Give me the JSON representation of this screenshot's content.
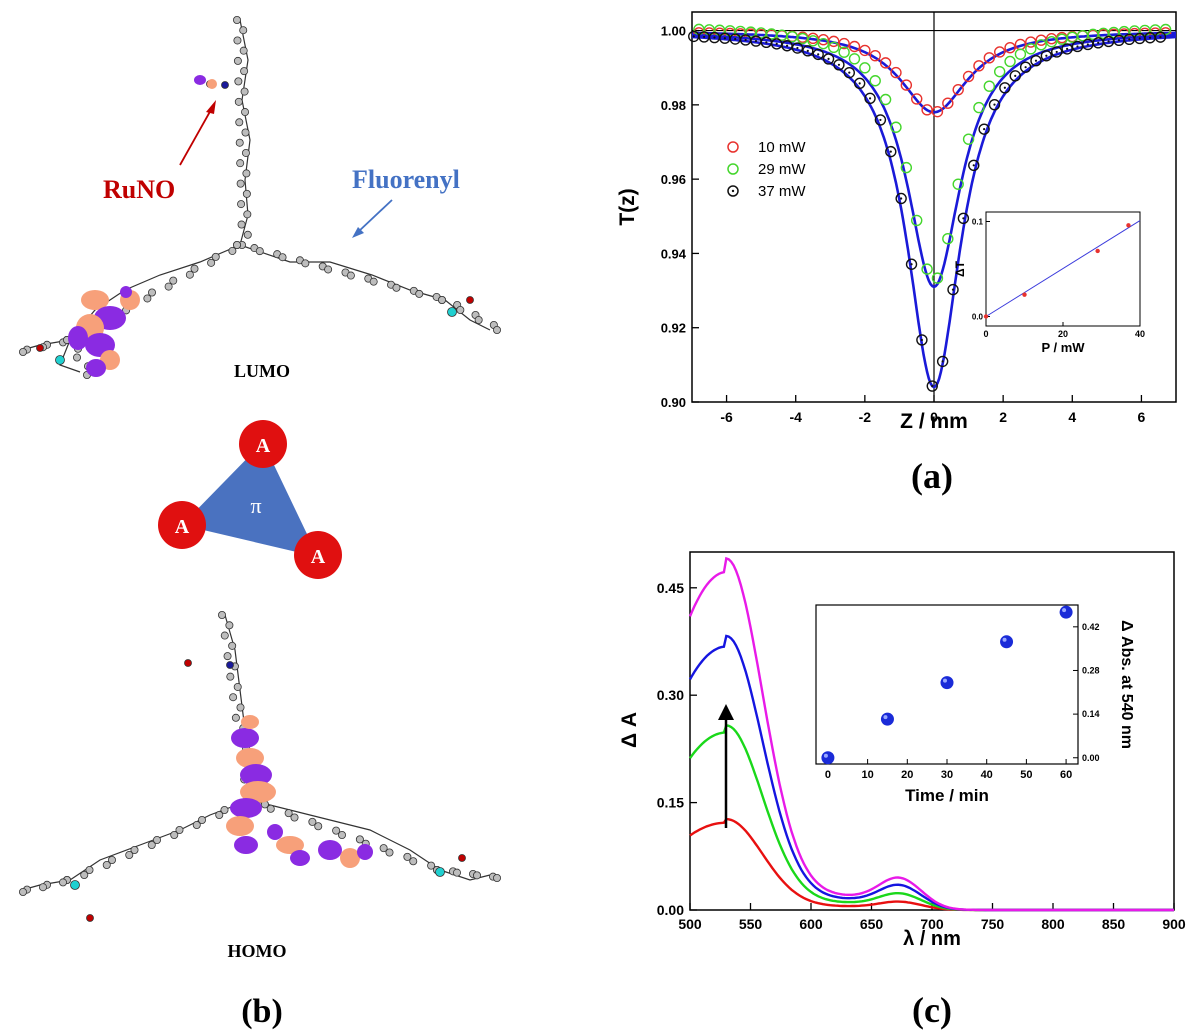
{
  "panel_labels": {
    "a": "(a)",
    "b": "(b)",
    "c": "(c)"
  },
  "molecule": {
    "lumo_label": "LUMO",
    "homo_label": "HOMO",
    "runo_label": "RuNO",
    "fluorenyl_label": "Fluorenyl",
    "triangle_center": "π",
    "triangle_vertex": "A",
    "colors": {
      "orbital_purple": "#8a2be2",
      "orbital_orange": "#f7a07a",
      "runo_red": "#c00000",
      "fluorenyl_blue": "#4472c4",
      "triangle": "#4a72c0",
      "vertex": "#e01010"
    }
  },
  "chart_data": [
    {
      "id": "a",
      "type": "scatter",
      "xlabel": "Z / mm",
      "ylabel": "T(z)",
      "xlim": [
        -7,
        7
      ],
      "ylim": [
        0.9,
        1.005
      ],
      "xticks": [
        -6,
        -4,
        -2,
        0,
        2,
        4,
        6
      ],
      "yticks": [
        0.9,
        0.92,
        0.94,
        0.96,
        0.98,
        1.0
      ],
      "ytick_labels": [
        "0.90",
        "0.92",
        "0.94",
        "0.96",
        "0.98",
        "1.00"
      ],
      "legend_position": "left",
      "series": [
        {
          "name": "10 mW",
          "color": "#e8322e",
          "min_T": 0.978,
          "width_mm": 1.2
        },
        {
          "name": "29 mW",
          "color": "#44d62c",
          "min_T": 0.931,
          "width_mm": 0.95
        },
        {
          "name": "37 mW",
          "color": "#111111",
          "min_T": 0.904,
          "width_mm": 0.95
        }
      ],
      "fit_color": "#1a1ad8",
      "inset": {
        "type": "scatter",
        "xlabel": "P / mW",
        "ylabel": "ΔT",
        "xlim": [
          0,
          40
        ],
        "ylim": [
          -0.01,
          0.11
        ],
        "xticks": [
          0,
          20,
          40
        ],
        "yticks": [
          0.0,
          0.1
        ],
        "ytick_labels": [
          "0.0",
          "0.1"
        ],
        "x": [
          0,
          10,
          29,
          37
        ],
        "y": [
          0.0,
          0.023,
          0.069,
          0.096
        ],
        "point_color": "#e8322e",
        "line_color": "#3b3bdc"
      }
    },
    {
      "id": "c",
      "type": "line",
      "xlabel": "λ / nm",
      "ylabel": "Δ A",
      "xlim": [
        500,
        900
      ],
      "ylim": [
        0,
        0.5
      ],
      "xticks": [
        500,
        550,
        600,
        650,
        700,
        750,
        800,
        850,
        900
      ],
      "yticks": [
        0.0,
        0.15,
        0.3,
        0.45
      ],
      "ytick_labels": [
        "0.00",
        "0.15",
        "0.30",
        "0.45"
      ],
      "series": [
        {
          "color": "#e81010",
          "peak": 0.122,
          "start": 0.104,
          "shoulder": 0.007
        },
        {
          "color": "#1ad81a",
          "peak": 0.248,
          "start": 0.212,
          "shoulder": 0.014
        },
        {
          "color": "#1515e0",
          "peak": 0.368,
          "start": 0.322,
          "shoulder": 0.021
        },
        {
          "color": "#e81ae8",
          "peak": 0.472,
          "start": 0.41,
          "shoulder": 0.027
        }
      ],
      "inset": {
        "type": "scatter",
        "xlabel": "Time / min",
        "ylabel": "Δ Abs. at 540 nm",
        "xlim": [
          -3,
          63
        ],
        "ylim": [
          -0.02,
          0.49
        ],
        "xticks": [
          0,
          10,
          20,
          30,
          40,
          50,
          60
        ],
        "yticks": [
          0.0,
          0.14,
          0.28,
          0.42
        ],
        "ytick_labels": [
          "0.00",
          "0.14",
          "0.28",
          "0.42"
        ],
        "x": [
          0,
          15,
          30,
          45,
          60
        ],
        "y": [
          0.0,
          0.124,
          0.241,
          0.372,
          0.467
        ],
        "point_color": "#1a2bd8"
      }
    }
  ]
}
